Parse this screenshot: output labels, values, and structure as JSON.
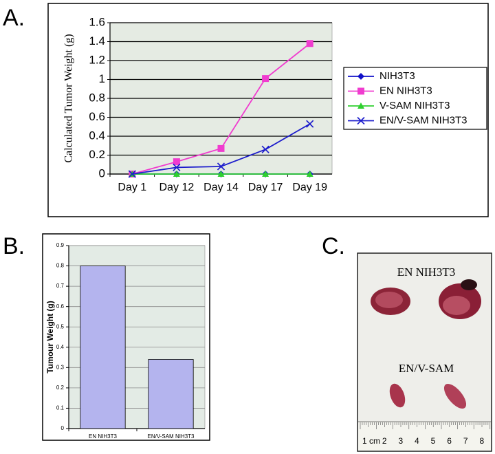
{
  "panels": [
    "A.",
    "B.",
    "C."
  ],
  "chart_data": [
    {
      "type": "line",
      "ylabel": "Calculated Tumor Weight (g)",
      "categories": [
        "Day 1",
        "Day 12",
        "Day 14",
        "Day 17",
        "Day 19"
      ],
      "series": [
        {
          "name": "NIH3T3",
          "color": "#1010c8",
          "marker": "diamond",
          "values": [
            0,
            0,
            0,
            0,
            0
          ]
        },
        {
          "name": "EN NIH3T3",
          "color": "#f03ccf",
          "marker": "square",
          "values": [
            0,
            0.13,
            0.27,
            1.01,
            1.38
          ]
        },
        {
          "name": "V-SAM NIH3T3",
          "color": "#2fd02f",
          "marker": "triangle",
          "values": [
            0,
            0,
            0,
            0,
            0
          ]
        },
        {
          "name": "EN/V-SAM NIH3T3",
          "color": "#1c1ccc",
          "marker": "x",
          "values": [
            0,
            0.07,
            0.08,
            0.26,
            0.53
          ]
        }
      ],
      "ylim": [
        0,
        1.6
      ],
      "yticks": [
        0,
        0.2,
        0.4,
        0.6,
        0.8,
        1,
        1.2,
        1.4,
        1.6
      ],
      "grid": true,
      "legend": "right"
    },
    {
      "type": "bar",
      "ylabel": "Tumour Weight (g)",
      "categories": [
        "EN NIH3T3",
        "EN/V-SAM NIH3T3"
      ],
      "values": [
        0.8,
        0.34
      ],
      "color": "#b4b4ee",
      "ylim": [
        0,
        0.9
      ],
      "yticks": [
        0,
        0.1,
        0.2,
        0.3,
        0.4,
        0.5,
        0.6,
        0.7,
        0.8,
        0.9
      ],
      "grid": true
    }
  ],
  "photo": {
    "labels": [
      "EN NIH3T3",
      "EN/V-SAM"
    ],
    "ruler": [
      "1 cm",
      "2",
      "3",
      "4",
      "5",
      "6",
      "7",
      "8"
    ]
  }
}
